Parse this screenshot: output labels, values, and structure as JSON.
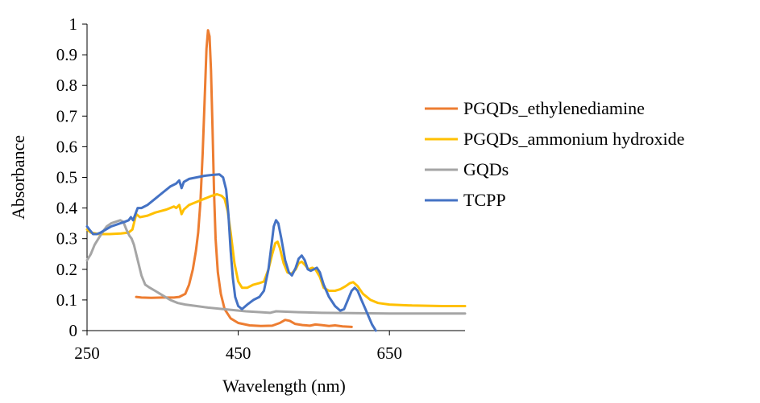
{
  "chart_data": {
    "type": "line",
    "title": "",
    "xlabel": "Wavelength  (nm)",
    "ylabel": "Absorbance",
    "xlim": [
      250,
      750
    ],
    "ylim": [
      0,
      1
    ],
    "x_ticks": [
      250,
      450,
      650
    ],
    "y_ticks": [
      0,
      0.1,
      0.2,
      0.3,
      0.4,
      0.5,
      0.6,
      0.7,
      0.8,
      0.9,
      1
    ],
    "x_tick_labels": [
      "250",
      "450",
      "650"
    ],
    "y_tick_labels": [
      "0",
      "0.1",
      "0.2",
      "0.3",
      "0.4",
      "0.5",
      "0.6",
      "0.7",
      "0.8",
      "0.9",
      "1"
    ],
    "grid": false,
    "legend_position": "right",
    "series": [
      {
        "name": "PGQDs_ethylenediamine",
        "color": "#ED7D31",
        "points": [
          [
            315,
            0.11
          ],
          [
            322,
            0.108
          ],
          [
            335,
            0.107
          ],
          [
            350,
            0.108
          ],
          [
            365,
            0.108
          ],
          [
            372,
            0.11
          ],
          [
            380,
            0.12
          ],
          [
            385,
            0.15
          ],
          [
            390,
            0.2
          ],
          [
            394,
            0.26
          ],
          [
            397,
            0.32
          ],
          [
            400,
            0.42
          ],
          [
            403,
            0.58
          ],
          [
            406,
            0.78
          ],
          [
            408,
            0.92
          ],
          [
            410,
            0.98
          ],
          [
            412,
            0.96
          ],
          [
            414,
            0.85
          ],
          [
            416,
            0.66
          ],
          [
            418,
            0.45
          ],
          [
            420,
            0.3
          ],
          [
            423,
            0.19
          ],
          [
            427,
            0.12
          ],
          [
            432,
            0.07
          ],
          [
            440,
            0.04
          ],
          [
            450,
            0.025
          ],
          [
            465,
            0.017
          ],
          [
            480,
            0.015
          ],
          [
            495,
            0.016
          ],
          [
            505,
            0.025
          ],
          [
            512,
            0.035
          ],
          [
            518,
            0.032
          ],
          [
            525,
            0.022
          ],
          [
            535,
            0.018
          ],
          [
            545,
            0.016
          ],
          [
            552,
            0.02
          ],
          [
            560,
            0.018
          ],
          [
            570,
            0.015
          ],
          [
            578,
            0.017
          ],
          [
            588,
            0.014
          ],
          [
            600,
            0.012
          ]
        ]
      },
      {
        "name": "PGQDs_ammonium hydroxide",
        "color": "#FFC000",
        "points": [
          [
            250,
            0.33
          ],
          [
            255,
            0.32
          ],
          [
            265,
            0.315
          ],
          [
            280,
            0.315
          ],
          [
            295,
            0.317
          ],
          [
            305,
            0.32
          ],
          [
            310,
            0.33
          ],
          [
            315,
            0.38
          ],
          [
            320,
            0.37
          ],
          [
            330,
            0.375
          ],
          [
            340,
            0.385
          ],
          [
            355,
            0.395
          ],
          [
            365,
            0.405
          ],
          [
            368,
            0.4
          ],
          [
            372,
            0.41
          ],
          [
            375,
            0.38
          ],
          [
            378,
            0.395
          ],
          [
            385,
            0.41
          ],
          [
            395,
            0.42
          ],
          [
            405,
            0.43
          ],
          [
            415,
            0.44
          ],
          [
            422,
            0.445
          ],
          [
            428,
            0.44
          ],
          [
            432,
            0.43
          ],
          [
            436,
            0.39
          ],
          [
            440,
            0.32
          ],
          [
            445,
            0.22
          ],
          [
            450,
            0.16
          ],
          [
            455,
            0.14
          ],
          [
            462,
            0.14
          ],
          [
            470,
            0.15
          ],
          [
            478,
            0.155
          ],
          [
            484,
            0.16
          ],
          [
            490,
            0.2
          ],
          [
            495,
            0.25
          ],
          [
            499,
            0.285
          ],
          [
            502,
            0.29
          ],
          [
            505,
            0.27
          ],
          [
            510,
            0.22
          ],
          [
            515,
            0.19
          ],
          [
            520,
            0.185
          ],
          [
            526,
            0.2
          ],
          [
            530,
            0.22
          ],
          [
            534,
            0.225
          ],
          [
            538,
            0.215
          ],
          [
            543,
            0.2
          ],
          [
            548,
            0.205
          ],
          [
            552,
            0.2
          ],
          [
            558,
            0.175
          ],
          [
            563,
            0.14
          ],
          [
            570,
            0.13
          ],
          [
            578,
            0.13
          ],
          [
            585,
            0.135
          ],
          [
            592,
            0.145
          ],
          [
            598,
            0.155
          ],
          [
            602,
            0.158
          ],
          [
            608,
            0.145
          ],
          [
            615,
            0.12
          ],
          [
            625,
            0.1
          ],
          [
            635,
            0.09
          ],
          [
            650,
            0.085
          ],
          [
            680,
            0.082
          ],
          [
            720,
            0.08
          ],
          [
            750,
            0.08
          ]
        ]
      },
      {
        "name": "GQDs",
        "color": "#A5A5A5",
        "points": [
          [
            250,
            0.23
          ],
          [
            255,
            0.25
          ],
          [
            260,
            0.28
          ],
          [
            265,
            0.3
          ],
          [
            270,
            0.32
          ],
          [
            276,
            0.34
          ],
          [
            282,
            0.35
          ],
          [
            288,
            0.355
          ],
          [
            294,
            0.36
          ],
          [
            298,
            0.355
          ],
          [
            302,
            0.33
          ],
          [
            306,
            0.31
          ],
          [
            309,
            0.3
          ],
          [
            312,
            0.28
          ],
          [
            315,
            0.25
          ],
          [
            318,
            0.22
          ],
          [
            322,
            0.18
          ],
          [
            327,
            0.15
          ],
          [
            333,
            0.14
          ],
          [
            340,
            0.13
          ],
          [
            350,
            0.115
          ],
          [
            360,
            0.1
          ],
          [
            370,
            0.09
          ],
          [
            380,
            0.085
          ],
          [
            395,
            0.08
          ],
          [
            410,
            0.075
          ],
          [
            430,
            0.07
          ],
          [
            460,
            0.063
          ],
          [
            480,
            0.06
          ],
          [
            492,
            0.058
          ],
          [
            500,
            0.063
          ],
          [
            510,
            0.062
          ],
          [
            530,
            0.06
          ],
          [
            560,
            0.058
          ],
          [
            600,
            0.057
          ],
          [
            650,
            0.056
          ],
          [
            700,
            0.056
          ],
          [
            750,
            0.056
          ]
        ]
      },
      {
        "name": "TCPP",
        "color": "#4472C4",
        "points": [
          [
            250,
            0.34
          ],
          [
            253,
            0.33
          ],
          [
            258,
            0.315
          ],
          [
            263,
            0.315
          ],
          [
            268,
            0.32
          ],
          [
            275,
            0.33
          ],
          [
            282,
            0.34
          ],
          [
            288,
            0.345
          ],
          [
            294,
            0.35
          ],
          [
            300,
            0.355
          ],
          [
            305,
            0.36
          ],
          [
            308,
            0.37
          ],
          [
            311,
            0.36
          ],
          [
            314,
            0.38
          ],
          [
            317,
            0.4
          ],
          [
            322,
            0.4
          ],
          [
            330,
            0.41
          ],
          [
            340,
            0.43
          ],
          [
            350,
            0.45
          ],
          [
            360,
            0.47
          ],
          [
            368,
            0.48
          ],
          [
            372,
            0.49
          ],
          [
            375,
            0.465
          ],
          [
            378,
            0.485
          ],
          [
            385,
            0.495
          ],
          [
            395,
            0.5
          ],
          [
            405,
            0.505
          ],
          [
            415,
            0.508
          ],
          [
            425,
            0.51
          ],
          [
            430,
            0.5
          ],
          [
            434,
            0.46
          ],
          [
            437,
            0.38
          ],
          [
            440,
            0.26
          ],
          [
            443,
            0.17
          ],
          [
            446,
            0.11
          ],
          [
            450,
            0.08
          ],
          [
            455,
            0.07
          ],
          [
            462,
            0.085
          ],
          [
            470,
            0.1
          ],
          [
            478,
            0.11
          ],
          [
            484,
            0.13
          ],
          [
            490,
            0.2
          ],
          [
            494,
            0.28
          ],
          [
            497,
            0.34
          ],
          [
            500,
            0.36
          ],
          [
            503,
            0.35
          ],
          [
            507,
            0.3
          ],
          [
            512,
            0.23
          ],
          [
            517,
            0.19
          ],
          [
            521,
            0.18
          ],
          [
            526,
            0.205
          ],
          [
            530,
            0.235
          ],
          [
            534,
            0.245
          ],
          [
            538,
            0.23
          ],
          [
            542,
            0.2
          ],
          [
            546,
            0.195
          ],
          [
            550,
            0.2
          ],
          [
            554,
            0.205
          ],
          [
            558,
            0.19
          ],
          [
            563,
            0.15
          ],
          [
            570,
            0.11
          ],
          [
            578,
            0.08
          ],
          [
            585,
            0.065
          ],
          [
            590,
            0.07
          ],
          [
            595,
            0.1
          ],
          [
            600,
            0.13
          ],
          [
            604,
            0.14
          ],
          [
            608,
            0.13
          ],
          [
            613,
            0.1
          ],
          [
            620,
            0.06
          ],
          [
            627,
            0.02
          ],
          [
            632,
            0.0
          ]
        ]
      }
    ]
  }
}
